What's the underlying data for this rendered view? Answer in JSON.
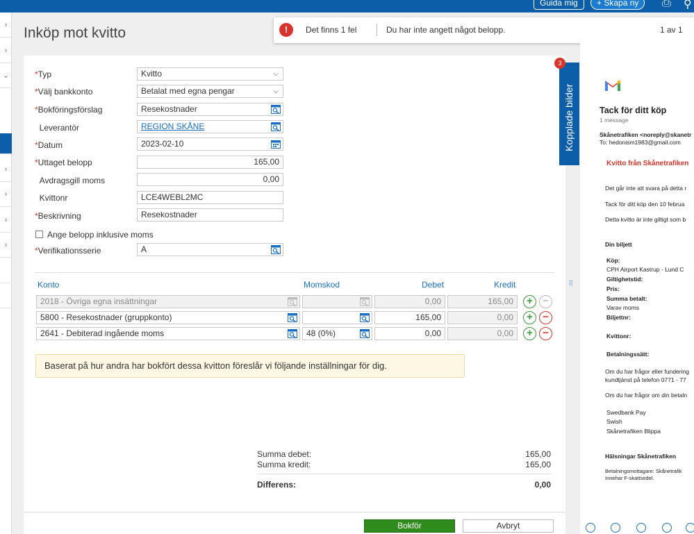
{
  "topbar": {
    "guide_label": "Guida mig",
    "create_label": "Skapa ny"
  },
  "page": {
    "title": "Inköp mot kvitto"
  },
  "error": {
    "icon": "!",
    "count_text": "Det finns 1 fel",
    "message": "Du har inte angett något belopp.",
    "pager": "1 av 1"
  },
  "form": {
    "typ": {
      "label": "Typ",
      "value": "Kvitto"
    },
    "bankkonto": {
      "label": "Välj bankkonto",
      "value": "Betalat med egna pengar"
    },
    "bokforingsforslag": {
      "label": "Bokföringsförslag",
      "value": "Resekostnader"
    },
    "leverantor": {
      "label": "Leverantör",
      "value": "REGION SKÅNE"
    },
    "datum": {
      "label": "Datum",
      "value": "2023-02-10"
    },
    "uttaget": {
      "label": "Uttaget belopp",
      "value": "165,00"
    },
    "avdragsgill": {
      "label": "Avdragsgill moms",
      "value": "0,00"
    },
    "kvittonr": {
      "label": "Kvittonr",
      "value": "LCE4WEBL2MC"
    },
    "beskrivning": {
      "label": "Beskrivning",
      "value": "Resekostnader"
    },
    "inklusive_moms": {
      "label": "Ange belopp inklusive moms"
    },
    "verifikationsserie": {
      "label": "Verifikationsserie",
      "value": "A"
    }
  },
  "table": {
    "headers": {
      "konto": "Konto",
      "momskod": "Momskod",
      "debet": "Debet",
      "kredit": "Kredit"
    },
    "rows": [
      {
        "konto": "2018 - Övriga egna insättningar",
        "momskod": "",
        "debet": "0,00",
        "kredit": "165,00"
      },
      {
        "konto": "5800 - Resekostnader (gruppkonto)",
        "momskod": "",
        "debet": "165,00",
        "kredit": "0,00"
      },
      {
        "konto": "2641 - Debiterad ingående moms",
        "momskod": "48 (0%)",
        "debet": "0,00",
        "kredit": "0,00"
      }
    ]
  },
  "suggestion": "Baserat på hur andra har bokfört dessa kvitton föreslår vi följande inställningar för dig.",
  "summary": {
    "debet_label": "Summa debet:",
    "debet_value": "165,00",
    "kredit_label": "Summa kredit:",
    "kredit_value": "165,00",
    "diff_label": "Differens:",
    "diff_value": "0,00"
  },
  "actions": {
    "bokfor": "Bokför",
    "avbryt": "Avbryt"
  },
  "attachments": {
    "label": "Kopplade bilder",
    "count": "3"
  },
  "preview": {
    "subject": "Tack för ditt köp",
    "msgcount": "1 message",
    "from": "Skånetrafiken <noreply@skanetr",
    "to": "To: hedonism1983@gmail.com",
    "heading": "Kvitto från Skånetrafiken",
    "line1": "Det går inte att svara på detta r",
    "line2": "Tack för ditt köp den 10 februa",
    "line3": "Detta kvitto är inte giltigt som b",
    "biljett": "Din biljett",
    "kop": "Köp:",
    "route": "CPH Airport Kastrup - Lund C",
    "giltighet": "Giltighetstid:",
    "pris": "Pris:",
    "summa": "Summa betalt:",
    "varav": "Varav moms",
    "biljettnr": "Biljettnr:",
    "kvittonr": "Kvittonr:",
    "betalningssatt": "Betalningssätt:",
    "fragor1": "Om du har frågor eller fundering",
    "fragor2": "kundtjänst på telefon 0771 - 77",
    "fragor3": "Om du har frågor om din betaln",
    "pay1": "Swedbank Pay",
    "pay2": "Swish",
    "pay3": "Skånetrafiken Blippa",
    "halsningar": "Hälsningar Skånetrafiken",
    "foot1": "Betalningsmottagare: Skånetrafik",
    "foot2": "Innehar F-skattsedel."
  },
  "colors": {
    "brand": "#0c5ea8",
    "error": "#d9342b",
    "ok": "#2e8b1c"
  }
}
